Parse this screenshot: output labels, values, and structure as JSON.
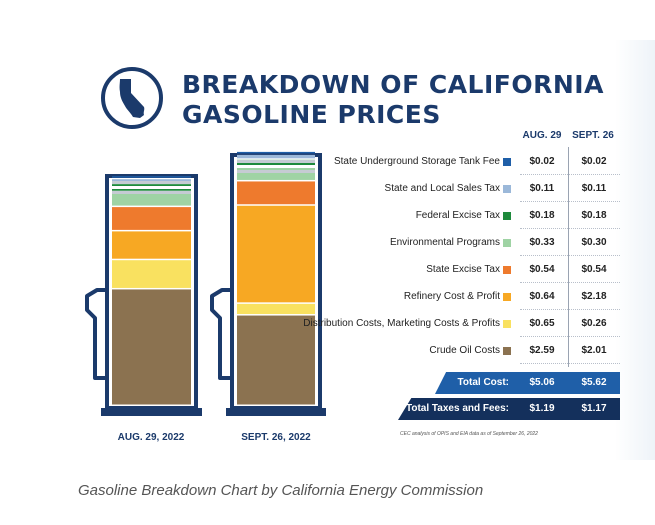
{
  "title": {
    "line1": "BREAKDOWN OF CALIFORNIA",
    "line2": "GASOLINE PRICES"
  },
  "logo_icon": "california-state-outline-icon",
  "caption": "Gasoline Breakdown Chart by California Energy Commission",
  "source_note": "CEC analysis of OPIS and EIA data as of September 26, 2022",
  "chart_data": {
    "type": "table",
    "columns": [
      "AUG. 29",
      "SEPT. 26"
    ],
    "pump_labels": [
      "AUG. 29, 2022",
      "SEPT. 26, 2022"
    ],
    "rows": [
      {
        "label": "State Underground Storage Tank Fee",
        "color": "#1f5fa8",
        "values": [
          "$0.02",
          "$0.02"
        ],
        "aug": 0.02,
        "sept": 0.02
      },
      {
        "label": "State and Local Sales Tax",
        "color": "#9bb8d9",
        "values": [
          "$0.11",
          "$0.11"
        ],
        "aug": 0.11,
        "sept": 0.11
      },
      {
        "label": "Federal Excise Tax",
        "color": "#1e8a3c",
        "values": [
          "$0.18",
          "$0.18"
        ],
        "aug": 0.18,
        "sept": 0.18
      },
      {
        "label": "Environmental Programs",
        "color": "#9fd3a4",
        "values": [
          "$0.33",
          "$0.30"
        ],
        "aug": 0.33,
        "sept": 0.3
      },
      {
        "label": "State Excise Tax",
        "color": "#ee7a2d",
        "values": [
          "$0.54",
          "$0.54"
        ],
        "aug": 0.54,
        "sept": 0.54
      },
      {
        "label": "Refinery Cost & Profit",
        "color": "#f7a823",
        "values": [
          "$0.64",
          "$2.18"
        ],
        "aug": 0.64,
        "sept": 2.18
      },
      {
        "label": "Distribution Costs, Marketing Costs & Profits",
        "color": "#f9e160",
        "values": [
          "$0.65",
          "$0.26"
        ],
        "aug": 0.65,
        "sept": 0.26
      },
      {
        "label": "Crude Oil Costs",
        "color": "#8b7250",
        "values": [
          "$2.59",
          "$2.01"
        ],
        "aug": 2.59,
        "sept": 2.01
      }
    ],
    "totals": [
      {
        "label": "Total Cost:",
        "values": [
          "$5.06",
          "$5.62"
        ],
        "color": "#1f5fa8"
      },
      {
        "label": "Total Taxes and Fees:",
        "values": [
          "$1.19",
          "$1.17"
        ],
        "color": "#14305c"
      }
    ]
  }
}
